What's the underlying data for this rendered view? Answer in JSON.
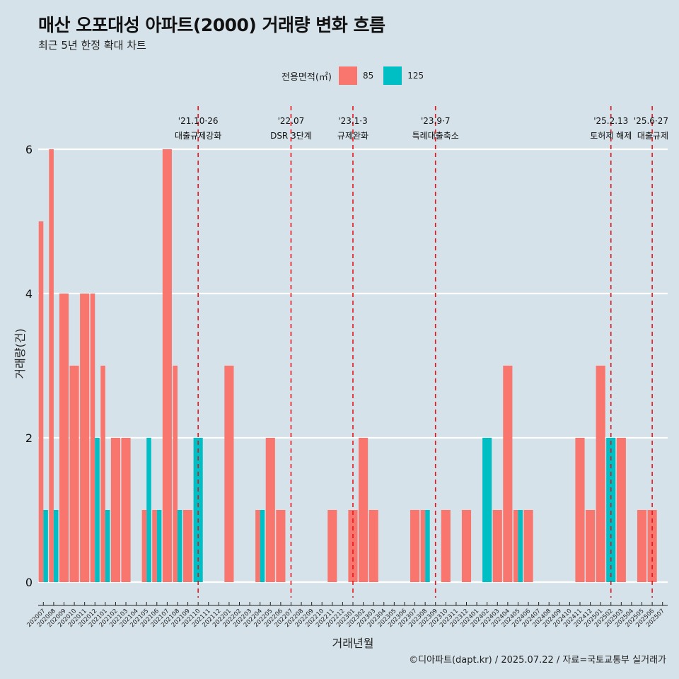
{
  "header": {
    "title": "매산 오포대성 아파트(2000) 거래량 변화 흐름",
    "subtitle": "최근 5년 한정 확대 차트"
  },
  "legend": {
    "title": "전용면적(㎡)",
    "items": [
      {
        "label": "85",
        "color": "#f8766d"
      },
      {
        "label": "125",
        "color": "#00bfc4"
      }
    ]
  },
  "caption": "©디아파트(dapt.kr) / 2025.07.22 / 자료=국토교통부 실거래가",
  "chart_data": {
    "type": "bar",
    "xlabel": "거래년월",
    "ylabel": "거래량(건)",
    "ylim": [
      0,
      6
    ],
    "yticks": [
      0,
      2,
      4,
      6
    ],
    "grid": true,
    "legend_position": "top",
    "categories": [
      "202007",
      "202008",
      "202009",
      "202010",
      "202011",
      "202012",
      "202101",
      "202102",
      "202103",
      "202104",
      "202105",
      "202106",
      "202107",
      "202108",
      "202109",
      "202110",
      "202111",
      "202112",
      "202201",
      "202202",
      "202203",
      "202204",
      "202205",
      "202206",
      "202207",
      "202208",
      "202209",
      "202210",
      "202211",
      "202212",
      "202301",
      "202302",
      "202303",
      "202304",
      "202305",
      "202306",
      "202307",
      "202308",
      "202309",
      "202310",
      "202311",
      "202312",
      "202401",
      "202402",
      "202403",
      "202404",
      "202405",
      "202406",
      "202407",
      "202408",
      "202409",
      "202410",
      "202411",
      "202412",
      "202501",
      "202502",
      "202503",
      "202504",
      "202505",
      "202506",
      "202507"
    ],
    "series": [
      {
        "name": "85",
        "color": "#f8766d",
        "values": [
          5,
          6,
          4,
          3,
          4,
          4,
          3,
          2,
          2,
          0,
          1,
          1,
          6,
          3,
          1,
          0,
          0,
          0,
          3,
          0,
          0,
          1,
          2,
          1,
          0,
          0,
          0,
          0,
          1,
          0,
          1,
          2,
          1,
          0,
          0,
          0,
          1,
          1,
          0,
          1,
          0,
          1,
          0,
          0,
          1,
          3,
          1,
          1,
          0,
          0,
          0,
          0,
          2,
          1,
          3,
          0,
          2,
          0,
          1,
          1,
          0
        ]
      },
      {
        "name": "125",
        "color": "#00bfc4",
        "values": [
          1,
          1,
          0,
          0,
          0,
          2,
          1,
          0,
          0,
          0,
          2,
          1,
          0,
          1,
          0,
          2,
          0,
          0,
          0,
          0,
          0,
          1,
          0,
          0,
          0,
          0,
          0,
          0,
          0,
          0,
          0,
          0,
          0,
          0,
          0,
          0,
          0,
          1,
          0,
          0,
          0,
          0,
          0,
          2,
          0,
          0,
          1,
          0,
          0,
          0,
          0,
          0,
          0,
          0,
          0,
          2,
          0,
          0,
          0,
          0,
          0
        ]
      }
    ],
    "annotations": [
      {
        "at": "202110",
        "date": "'21.10·26",
        "text": "대출규제강화"
      },
      {
        "at": "202207",
        "date": "'22.07",
        "text": "DSR 3단계"
      },
      {
        "at": "202301",
        "date": "'23.1·3",
        "text": "규제완화"
      },
      {
        "at": "202309",
        "date": "'23.9·7",
        "text": "특례대출축소"
      },
      {
        "at": "202502",
        "date": "'25.2.13",
        "text": "토허제 해제"
      },
      {
        "at": "202506",
        "date": "'25.6·27",
        "text": "대출규제"
      }
    ]
  }
}
